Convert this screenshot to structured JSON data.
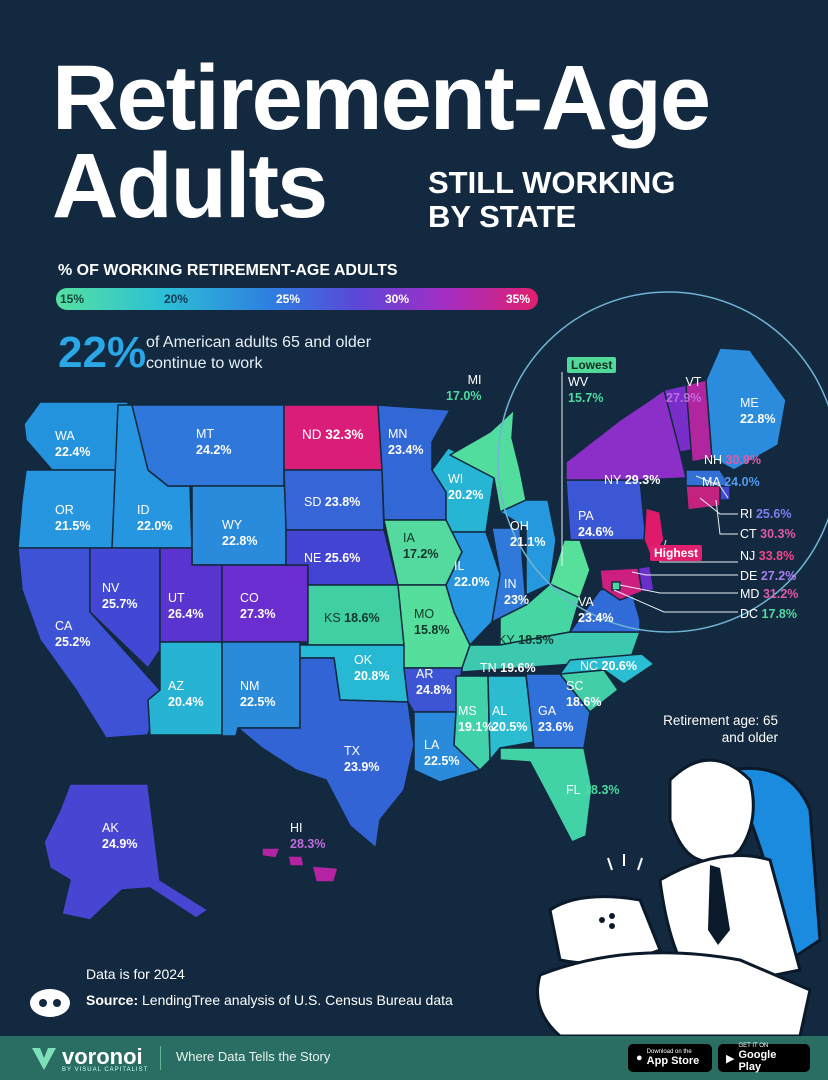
{
  "title": {
    "line1": "Retirement-Age",
    "line2": "Adults",
    "subtitle_line1": "STILL WORKING",
    "subtitle_line2": "BY STATE"
  },
  "legend": {
    "title": "% OF WORKING RETIREMENT-AGE ADULTS",
    "ticks": [
      "15%",
      "20%",
      "25%",
      "30%",
      "35%"
    ]
  },
  "stat": {
    "value": "22%",
    "text": "of American adults 65 and older continue to work"
  },
  "badges": {
    "lowest": "Lowest",
    "highest": "Highest"
  },
  "retirement_note": "Retirement age: 65 and older",
  "footer": {
    "data_note": "Data is for 2024",
    "source_label": "Source:",
    "source_text": "LendingTree analysis of U.S. Census Bureau data",
    "brand": "voronoi",
    "brand_sub": "BY VISUAL CAPITALIST",
    "tagline": "Where Data Tells the Story",
    "app_store_small": "Download on the",
    "app_store": "App Store",
    "google_play_small": "GET IT ON",
    "google_play": "Google Play"
  },
  "colors": {
    "low": "#55e0a0",
    "mid": "#2e7de0",
    "high": "#e11f6e",
    "background": "#13293f"
  },
  "states": [
    {
      "abbr": "WA",
      "value": "22.4%"
    },
    {
      "abbr": "OR",
      "value": "21.5%"
    },
    {
      "abbr": "CA",
      "value": "25.2%"
    },
    {
      "abbr": "ID",
      "value": "22.0%"
    },
    {
      "abbr": "NV",
      "value": "25.7%"
    },
    {
      "abbr": "MT",
      "value": "24.2%"
    },
    {
      "abbr": "WY",
      "value": "22.8%"
    },
    {
      "abbr": "UT",
      "value": "26.4%"
    },
    {
      "abbr": "CO",
      "value": "27.3%"
    },
    {
      "abbr": "AZ",
      "value": "20.4%"
    },
    {
      "abbr": "NM",
      "value": "22.5%"
    },
    {
      "abbr": "ND",
      "value": "32.3%"
    },
    {
      "abbr": "SD",
      "value": "23.8%"
    },
    {
      "abbr": "NE",
      "value": "25.6%"
    },
    {
      "abbr": "KS",
      "value": "18.6%"
    },
    {
      "abbr": "OK",
      "value": "20.8%"
    },
    {
      "abbr": "TX",
      "value": "23.9%"
    },
    {
      "abbr": "MN",
      "value": "23.4%"
    },
    {
      "abbr": "IA",
      "value": "17.2%"
    },
    {
      "abbr": "MO",
      "value": "15.8%"
    },
    {
      "abbr": "AR",
      "value": "24.8%"
    },
    {
      "abbr": "LA",
      "value": "22.5%"
    },
    {
      "abbr": "WI",
      "value": "20.2%"
    },
    {
      "abbr": "IL",
      "value": "22.0%"
    },
    {
      "abbr": "MI",
      "value": "17.0%"
    },
    {
      "abbr": "IN",
      "value": "23%"
    },
    {
      "abbr": "OH",
      "value": "21.1%"
    },
    {
      "abbr": "KY",
      "value": "18.5%"
    },
    {
      "abbr": "TN",
      "value": "19.6%"
    },
    {
      "abbr": "MS",
      "value": "19.1%"
    },
    {
      "abbr": "AL",
      "value": "20.5%"
    },
    {
      "abbr": "GA",
      "value": "23.6%"
    },
    {
      "abbr": "FL",
      "value": "18.3%"
    },
    {
      "abbr": "SC",
      "value": "18.6%"
    },
    {
      "abbr": "NC",
      "value": "20.6%"
    },
    {
      "abbr": "VA",
      "value": "23.4%"
    },
    {
      "abbr": "WV",
      "value": "15.7%"
    },
    {
      "abbr": "PA",
      "value": "24.6%"
    },
    {
      "abbr": "NY",
      "value": "29.3%"
    },
    {
      "abbr": "VT",
      "value": "27.9%"
    },
    {
      "abbr": "NH",
      "value": "30.9%"
    },
    {
      "abbr": "ME",
      "value": "22.8%"
    },
    {
      "abbr": "MA",
      "value": "24.0%"
    },
    {
      "abbr": "RI",
      "value": "25.6%"
    },
    {
      "abbr": "CT",
      "value": "30.3%"
    },
    {
      "abbr": "NJ",
      "value": "33.8%"
    },
    {
      "abbr": "DE",
      "value": "27.2%"
    },
    {
      "abbr": "MD",
      "value": "31.2%"
    },
    {
      "abbr": "DC",
      "value": "17.8%"
    },
    {
      "abbr": "AK",
      "value": "24.9%"
    },
    {
      "abbr": "HI",
      "value": "28.3%"
    }
  ]
}
